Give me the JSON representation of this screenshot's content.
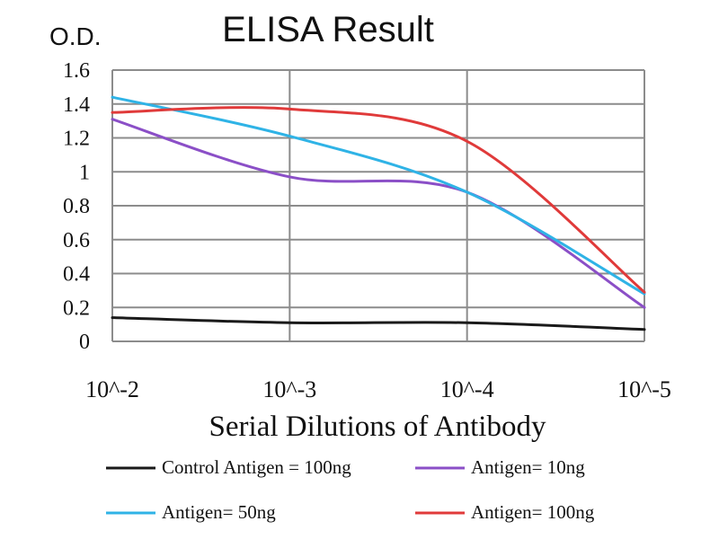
{
  "chart_data": {
    "type": "line",
    "title": "ELISA Result",
    "ylabel": "O.D.",
    "xlabel": "Serial Dilutions of Antibody",
    "categories": [
      "10^-2",
      "10^-3",
      "10^-4",
      "10^-5"
    ],
    "ylim": [
      0,
      1.6
    ],
    "yticks": [
      "0",
      "0.2",
      "0.4",
      "0.6",
      "0.8",
      "1",
      "1.2",
      "1.4",
      "1.6"
    ],
    "yvalues": [
      0,
      0.2,
      0.4,
      0.6,
      0.8,
      1.0,
      1.2,
      1.4,
      1.6
    ],
    "grid": true,
    "legend_position": "bottom",
    "series": [
      {
        "name": "Control Antigen = 100ng",
        "color": "#1a1a1a",
        "values": [
          0.14,
          0.11,
          0.11,
          0.07
        ]
      },
      {
        "name": "Antigen= 10ng",
        "color": "#8b4fc7",
        "values": [
          1.31,
          0.97,
          0.88,
          0.2
        ]
      },
      {
        "name": "Antigen= 50ng",
        "color": "#2fb3e6",
        "values": [
          1.44,
          1.21,
          0.88,
          0.28
        ]
      },
      {
        "name": "Antigen= 100ng",
        "color": "#e03a3a",
        "values": [
          1.35,
          1.37,
          1.18,
          0.29
        ]
      }
    ]
  }
}
